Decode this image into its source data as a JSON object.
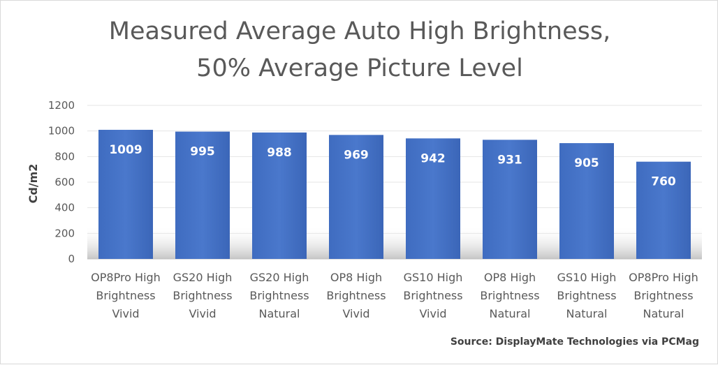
{
  "chart_data": {
    "type": "bar",
    "title_lines": [
      "Measured Average Auto High Brightness,",
      "50% Average Picture Level"
    ],
    "ylabel": "Cd/m2",
    "xlabel": "",
    "ylim": [
      0,
      1200
    ],
    "yticks": [
      0,
      200,
      400,
      600,
      800,
      1000,
      1200
    ],
    "grid": true,
    "categories": [
      [
        "OP8Pro High",
        "Brightness",
        "Vivid"
      ],
      [
        "GS20 High",
        "Brightness",
        "Vivid"
      ],
      [
        "GS20 High",
        "Brightness",
        "Natural"
      ],
      [
        "OP8 High",
        "Brightness",
        "Vivid"
      ],
      [
        "GS10 High",
        "Brightness",
        "Vivid"
      ],
      [
        "OP8 High",
        "Brightness",
        "Natural"
      ],
      [
        "GS10 High",
        "Brightness",
        "Natural"
      ],
      [
        "OP8Pro High",
        "Brightness",
        "Natural"
      ]
    ],
    "values": [
      1009,
      995,
      988,
      969,
      942,
      931,
      905,
      760
    ],
    "bar_color": "#4472C4",
    "source": "Source: DisplayMate Technologies via PCMag"
  }
}
